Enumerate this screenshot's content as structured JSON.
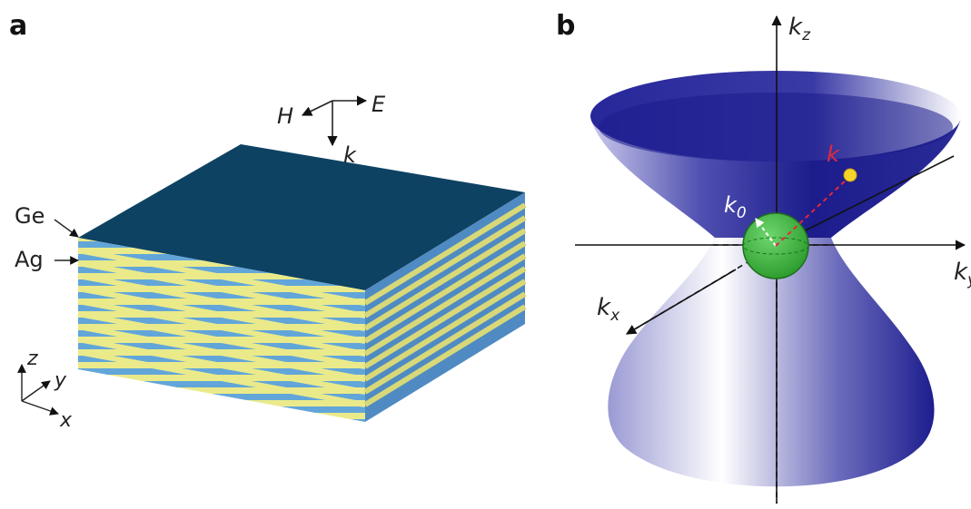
{
  "panel_a": {
    "letter": "a",
    "field_labels": {
      "h": "H",
      "e": "E",
      "k": "k"
    },
    "material_labels": {
      "ge": "Ge",
      "ag": "Ag"
    },
    "axes": {
      "z": "z",
      "y": "y",
      "x": "x"
    },
    "colors": {
      "top": "#0e4262",
      "blue_layer": "#62a6d9",
      "yellow_layer": "#eaea8a",
      "side_dark": "#4a7fb0"
    }
  },
  "panel_b": {
    "letter": "b",
    "axis_labels": {
      "kz": "k",
      "kz_sub": "z",
      "kx": "k",
      "kx_sub": "x",
      "ky": "k",
      "ky_sub": "y"
    },
    "vector_labels": {
      "k": "k",
      "k0": "k",
      "k0_sub": "0"
    },
    "colors": {
      "hyperboloid": "#1c1c8c",
      "sphere": "#3fb23f",
      "k_vector": "#e2283a",
      "point": "#f3d52a"
    }
  }
}
